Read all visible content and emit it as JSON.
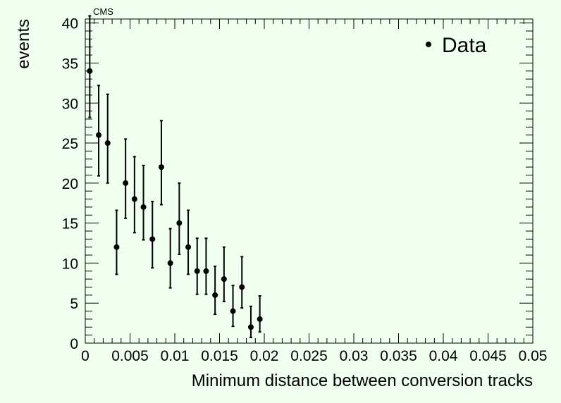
{
  "chart_data": {
    "type": "scatter",
    "title": "CMS",
    "xlabel": "Minimum distance between conversion tracks",
    "ylabel": "events",
    "xlim": [
      0,
      0.05
    ],
    "ylim": [
      0,
      40.5
    ],
    "grid": false,
    "legend_position": "top-right",
    "x_ticks": [
      "0",
      "0.005",
      "0.01",
      "0.015",
      "0.02",
      "0.025",
      "0.03",
      "0.035",
      "0.04",
      "0.045",
      "0.05"
    ],
    "y_ticks": [
      "0",
      "5",
      "10",
      "15",
      "20",
      "25",
      "30",
      "35",
      "40"
    ],
    "series": [
      {
        "name": "Data",
        "color": "#000000",
        "points": [
          {
            "x": 0.0005,
            "y": 34,
            "err_low": 5.8,
            "err_high": 6.9
          },
          {
            "x": 0.0015,
            "y": 26,
            "err_low": 5.1,
            "err_high": 6.2
          },
          {
            "x": 0.0025,
            "y": 25,
            "err_low": 5.0,
            "err_high": 6.1
          },
          {
            "x": 0.0035,
            "y": 12,
            "err_low": 3.4,
            "err_high": 4.6
          },
          {
            "x": 0.0045,
            "y": 20,
            "err_low": 4.4,
            "err_high": 5.5
          },
          {
            "x": 0.0055,
            "y": 18,
            "err_low": 4.2,
            "err_high": 5.3
          },
          {
            "x": 0.0065,
            "y": 17,
            "err_low": 4.1,
            "err_high": 5.2
          },
          {
            "x": 0.0075,
            "y": 13,
            "err_low": 3.6,
            "err_high": 4.7
          },
          {
            "x": 0.0085,
            "y": 22,
            "err_low": 4.7,
            "err_high": 5.8
          },
          {
            "x": 0.0095,
            "y": 10,
            "err_low": 3.1,
            "err_high": 4.3
          },
          {
            "x": 0.0105,
            "y": 15,
            "err_low": 3.9,
            "err_high": 5.0
          },
          {
            "x": 0.0115,
            "y": 12,
            "err_low": 3.4,
            "err_high": 4.6
          },
          {
            "x": 0.0125,
            "y": 9,
            "err_low": 2.9,
            "err_high": 4.1
          },
          {
            "x": 0.0135,
            "y": 9,
            "err_low": 2.9,
            "err_high": 4.1
          },
          {
            "x": 0.0145,
            "y": 6,
            "err_low": 2.4,
            "err_high": 3.6
          },
          {
            "x": 0.0155,
            "y": 8,
            "err_low": 2.8,
            "err_high": 4.0
          },
          {
            "x": 0.0165,
            "y": 4,
            "err_low": 1.9,
            "err_high": 3.2
          },
          {
            "x": 0.0175,
            "y": 7,
            "err_low": 2.6,
            "err_high": 3.8
          },
          {
            "x": 0.0185,
            "y": 2,
            "err_low": 1.3,
            "err_high": 2.6
          },
          {
            "x": 0.0195,
            "y": 3,
            "err_low": 1.6,
            "err_high": 2.9
          }
        ]
      }
    ]
  }
}
